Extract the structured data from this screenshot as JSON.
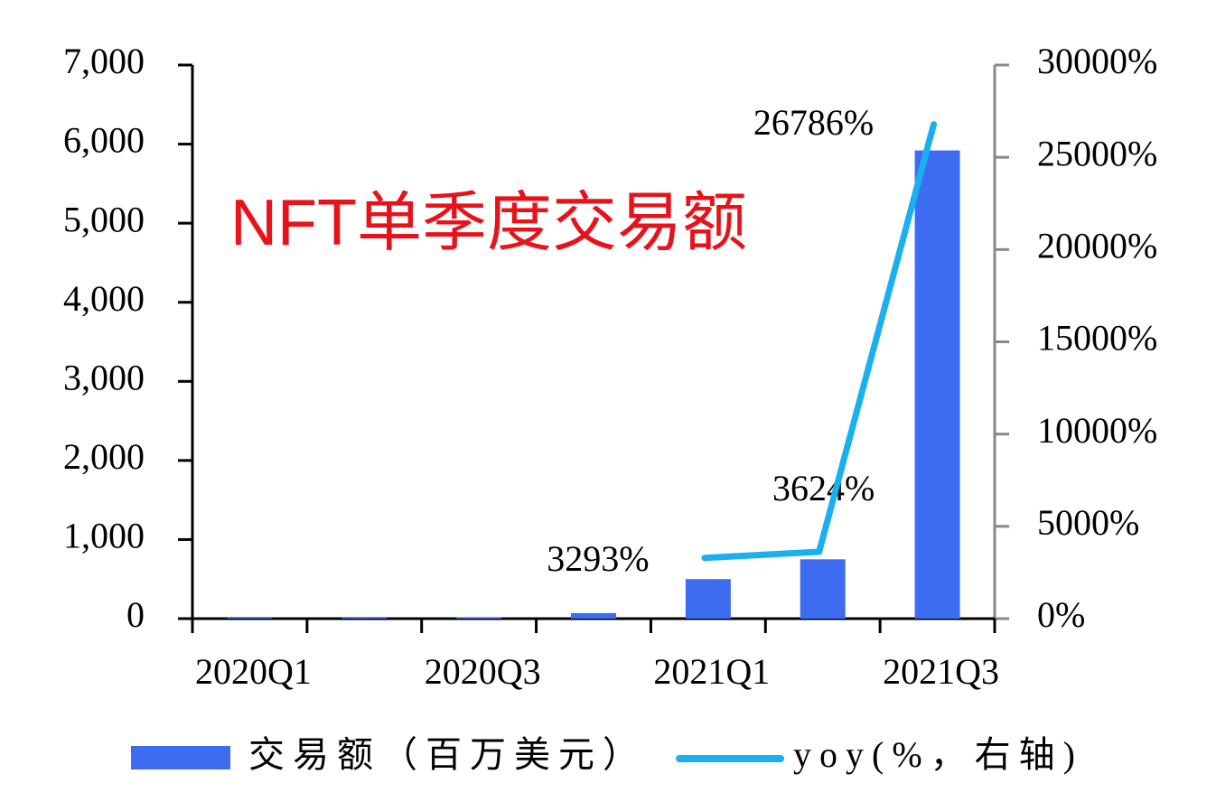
{
  "chart_data": {
    "type": "bar",
    "title": "NFT单季度交易额",
    "categories": [
      "2020Q1",
      null,
      "2020Q3",
      null,
      "2021Q1",
      null,
      "2021Q3"
    ],
    "series": [
      {
        "name": "交易额（百万美元）",
        "type": "bar",
        "color": "#3d6cf0",
        "values": [
          10,
          12,
          15,
          70,
          500,
          750,
          5920
        ]
      },
      {
        "name": "yoy(%，右轴)",
        "type": "line",
        "axis": "y2",
        "color": "#1ab0f0",
        "values": [
          null,
          null,
          null,
          null,
          3293,
          3624,
          26786
        ],
        "value_labels": [
          null,
          null,
          null,
          null,
          "3293%",
          "3624%",
          "26786%"
        ]
      }
    ],
    "ylim": [
      0,
      7000
    ],
    "yticks": [
      0,
      {
        "value": 1000,
        "label": "1,000"
      },
      {
        "value": 2000,
        "label": "2,000"
      },
      {
        "value": 3000,
        "label": "3,000"
      },
      {
        "value": 4000,
        "label": "4,000"
      },
      {
        "value": 5000,
        "label": "5,000"
      },
      {
        "value": 6000,
        "label": "6,000"
      },
      {
        "value": 7000,
        "label": "7,000"
      }
    ],
    "y2lim": [
      0,
      30000
    ],
    "y2ticks": [
      {
        "value": 0,
        "label": "0%"
      },
      {
        "value": 5000,
        "label": "5000%"
      },
      {
        "value": 10000,
        "label": "10000%"
      },
      {
        "value": 15000,
        "label": "15000%"
      },
      {
        "value": 20000,
        "label": "20000%"
      },
      {
        "value": 25000,
        "label": "25000%"
      },
      {
        "value": 30000,
        "label": "30000%"
      }
    ],
    "legend": "bottom"
  }
}
